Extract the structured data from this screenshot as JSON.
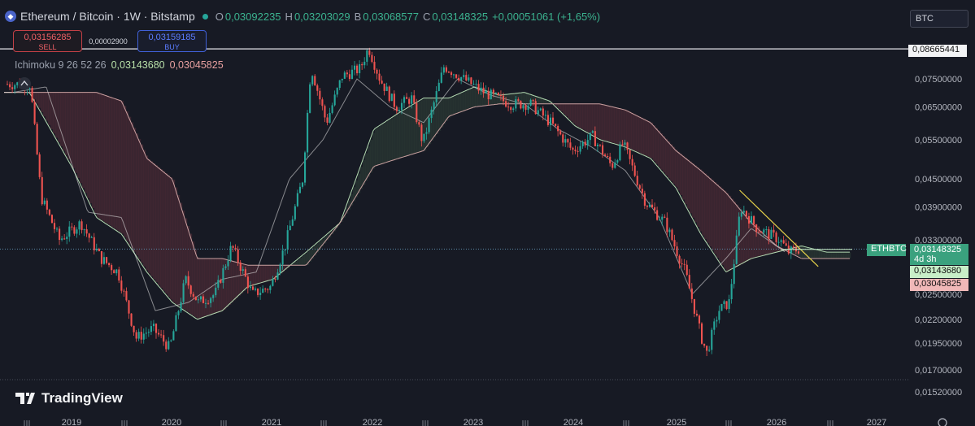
{
  "header": {
    "title": "Ethereum / Bitcoin · 1W · Bitstamp",
    "o_label": "O",
    "o_value": "0,03092235",
    "h_label": "H",
    "h_value": "0,03203029",
    "l_label": "B",
    "l_value": "0,03068577",
    "c_label": "C",
    "c_value": "0,03148325",
    "change": "+0,00051061 (+1,65%)"
  },
  "trade": {
    "sell_price": "0,03156285",
    "sell_label": "SELL",
    "spread": "0,00002900",
    "buy_price": "0,03159185",
    "buy_label": "BUY"
  },
  "indicator": {
    "name": "Ichimoku 9 26 52 26",
    "value1": "0,03143680",
    "value2": "0,03045825"
  },
  "currency_label": "BTC",
  "logo_text": "TradingView",
  "price_labels": {
    "top_line": "0,08665441",
    "symbol_tag": "ETHBTC",
    "current": "0,03148325",
    "countdown": "4d 3h",
    "line1": "0,03143680",
    "line2": "0,03045825"
  },
  "colors": {
    "background": "#171a24",
    "up": "#26a69a",
    "down": "#ef5350",
    "cloud_bull": "#a5d6a7",
    "cloud_bear": "#c09090",
    "trendline": "#e6d24a"
  },
  "chart_data": {
    "type": "candlestick",
    "title": "Ethereum / Bitcoin · 1W · Bitstamp",
    "y_scale": "log",
    "ylim": [
      0.0148,
      0.09
    ],
    "y_ticks": [
      "0,07500000",
      "0,06500000",
      "0,05500000",
      "0,04500000",
      "0,03900000",
      "0,03300000",
      "0,02500000",
      "0,02200000",
      "0,01950000",
      "0,01700000",
      "0,01520000"
    ],
    "x_ticks": [
      "2019",
      "2020",
      "2021",
      "2022",
      "2023",
      "2024",
      "2025",
      "2026",
      "2027"
    ],
    "price_path": [
      {
        "t": "2018-08-01",
        "p": 0.073
      },
      {
        "t": "2018-09-10",
        "p": 0.041
      },
      {
        "t": "2018-11-15",
        "p": 0.033
      },
      {
        "t": "2019-02-01",
        "p": 0.036
      },
      {
        "t": "2019-04-15",
        "p": 0.03
      },
      {
        "t": "2019-06-15",
        "p": 0.028
      },
      {
        "t": "2019-08-20",
        "p": 0.02
      },
      {
        "t": "2019-10-20",
        "p": 0.021
      },
      {
        "t": "2019-12-20",
        "p": 0.019
      },
      {
        "t": "2020-02-15",
        "p": 0.027
      },
      {
        "t": "2020-04-01",
        "p": 0.024
      },
      {
        "t": "2020-06-01",
        "p": 0.025
      },
      {
        "t": "2020-08-01",
        "p": 0.032
      },
      {
        "t": "2020-10-15",
        "p": 0.025
      },
      {
        "t": "2020-12-20",
        "p": 0.026
      },
      {
        "t": "2021-02-10",
        "p": 0.032
      },
      {
        "t": "2021-04-15",
        "p": 0.045
      },
      {
        "t": "2021-05-15",
        "p": 0.08
      },
      {
        "t": "2021-07-10",
        "p": 0.06
      },
      {
        "t": "2021-09-05",
        "p": 0.076
      },
      {
        "t": "2021-11-10",
        "p": 0.079
      },
      {
        "t": "2021-12-10",
        "p": 0.088
      },
      {
        "t": "2022-01-20",
        "p": 0.075
      },
      {
        "t": "2022-03-20",
        "p": 0.065
      },
      {
        "t": "2022-05-15",
        "p": 0.068
      },
      {
        "t": "2022-06-25",
        "p": 0.054
      },
      {
        "t": "2022-09-10",
        "p": 0.08
      },
      {
        "t": "2022-11-20",
        "p": 0.075
      },
      {
        "t": "2023-02-01",
        "p": 0.07
      },
      {
        "t": "2023-05-10",
        "p": 0.066
      },
      {
        "t": "2023-07-20",
        "p": 0.066
      },
      {
        "t": "2023-10-01",
        "p": 0.06
      },
      {
        "t": "2023-12-20",
        "p": 0.052
      },
      {
        "t": "2024-03-01",
        "p": 0.056
      },
      {
        "t": "2024-05-10",
        "p": 0.048
      },
      {
        "t": "2024-06-20",
        "p": 0.054
      },
      {
        "t": "2024-09-10",
        "p": 0.04
      },
      {
        "t": "2024-11-20",
        "p": 0.036
      },
      {
        "t": "2025-02-01",
        "p": 0.028
      },
      {
        "t": "2025-04-01",
        "p": 0.02
      },
      {
        "t": "2025-04-20",
        "p": 0.0185
      },
      {
        "t": "2025-06-01",
        "p": 0.023
      },
      {
        "t": "2025-07-10",
        "p": 0.024
      },
      {
        "t": "2025-08-20",
        "p": 0.039
      },
      {
        "t": "2025-10-20",
        "p": 0.035
      },
      {
        "t": "2026-01-10",
        "p": 0.033
      },
      {
        "t": "2026-02-10",
        "p": 0.031
      },
      {
        "t": "2026-03-20",
        "p": 0.0315
      }
    ],
    "ichimoku_span_a": [
      {
        "t": "2018-08-01",
        "p": 0.07
      },
      {
        "t": "2019-01-01",
        "p": 0.048
      },
      {
        "t": "2019-04-01",
        "p": 0.037
      },
      {
        "t": "2019-07-01",
        "p": 0.034
      },
      {
        "t": "2019-10-01",
        "p": 0.028
      },
      {
        "t": "2020-01-01",
        "p": 0.024
      },
      {
        "t": "2020-04-01",
        "p": 0.022
      },
      {
        "t": "2020-07-01",
        "p": 0.023
      },
      {
        "t": "2020-10-01",
        "p": 0.026
      },
      {
        "t": "2021-01-01",
        "p": 0.027
      },
      {
        "t": "2021-05-01",
        "p": 0.031
      },
      {
        "t": "2021-09-01",
        "p": 0.036
      },
      {
        "t": "2022-01-01",
        "p": 0.058
      },
      {
        "t": "2022-04-01",
        "p": 0.063
      },
      {
        "t": "2022-07-01",
        "p": 0.068
      },
      {
        "t": "2022-10-01",
        "p": 0.068
      },
      {
        "t": "2023-01-01",
        "p": 0.072
      },
      {
        "t": "2023-04-01",
        "p": 0.069
      },
      {
        "t": "2023-07-01",
        "p": 0.07
      },
      {
        "t": "2023-10-01",
        "p": 0.067
      },
      {
        "t": "2024-01-01",
        "p": 0.059
      },
      {
        "t": "2024-04-01",
        "p": 0.055
      },
      {
        "t": "2024-07-01",
        "p": 0.053
      },
      {
        "t": "2024-10-01",
        "p": 0.05
      },
      {
        "t": "2025-01-01",
        "p": 0.043
      },
      {
        "t": "2025-04-01",
        "p": 0.034
      },
      {
        "t": "2025-07-01",
        "p": 0.028
      },
      {
        "t": "2025-10-01",
        "p": 0.03
      },
      {
        "t": "2026-01-01",
        "p": 0.031
      },
      {
        "t": "2026-04-01",
        "p": 0.032
      },
      {
        "t": "2026-07-01",
        "p": 0.031
      }
    ],
    "ichimoku_span_b": [
      {
        "t": "2018-08-01",
        "p": 0.07
      },
      {
        "t": "2019-01-01",
        "p": 0.07
      },
      {
        "t": "2019-04-01",
        "p": 0.07
      },
      {
        "t": "2019-07-01",
        "p": 0.067
      },
      {
        "t": "2019-10-01",
        "p": 0.05
      },
      {
        "t": "2020-01-01",
        "p": 0.045
      },
      {
        "t": "2020-04-01",
        "p": 0.03
      },
      {
        "t": "2020-07-01",
        "p": 0.03
      },
      {
        "t": "2020-10-01",
        "p": 0.029
      },
      {
        "t": "2021-01-01",
        "p": 0.029
      },
      {
        "t": "2021-05-01",
        "p": 0.029
      },
      {
        "t": "2021-09-01",
        "p": 0.036
      },
      {
        "t": "2022-01-01",
        "p": 0.048
      },
      {
        "t": "2022-04-01",
        "p": 0.05
      },
      {
        "t": "2022-07-01",
        "p": 0.052
      },
      {
        "t": "2022-10-01",
        "p": 0.062
      },
      {
        "t": "2023-01-01",
        "p": 0.065
      },
      {
        "t": "2023-04-01",
        "p": 0.066
      },
      {
        "t": "2023-07-01",
        "p": 0.066
      },
      {
        "t": "2023-10-01",
        "p": 0.066
      },
      {
        "t": "2024-01-01",
        "p": 0.066
      },
      {
        "t": "2024-04-01",
        "p": 0.066
      },
      {
        "t": "2024-07-01",
        "p": 0.064
      },
      {
        "t": "2024-10-01",
        "p": 0.06
      },
      {
        "t": "2025-01-01",
        "p": 0.052
      },
      {
        "t": "2025-04-01",
        "p": 0.047
      },
      {
        "t": "2025-07-01",
        "p": 0.042
      },
      {
        "t": "2025-10-01",
        "p": 0.036
      },
      {
        "t": "2026-01-01",
        "p": 0.032
      },
      {
        "t": "2026-04-01",
        "p": 0.03
      },
      {
        "t": "2026-07-01",
        "p": 0.03
      }
    ],
    "lagging_span": [
      {
        "t": "2018-06-01",
        "p": 0.07
      },
      {
        "t": "2018-10-01",
        "p": 0.072
      },
      {
        "t": "2019-03-01",
        "p": 0.038
      },
      {
        "t": "2019-07-01",
        "p": 0.037
      },
      {
        "t": "2019-11-01",
        "p": 0.023
      },
      {
        "t": "2020-03-01",
        "p": 0.024
      },
      {
        "t": "2020-07-01",
        "p": 0.027
      },
      {
        "t": "2020-11-01",
        "p": 0.028
      },
      {
        "t": "2021-03-01",
        "p": 0.045
      },
      {
        "t": "2021-07-01",
        "p": 0.055
      },
      {
        "t": "2021-11-01",
        "p": 0.075
      },
      {
        "t": "2022-03-01",
        "p": 0.065
      },
      {
        "t": "2022-07-01",
        "p": 0.06
      },
      {
        "t": "2022-11-01",
        "p": 0.075
      },
      {
        "t": "2023-03-01",
        "p": 0.069
      },
      {
        "t": "2023-07-01",
        "p": 0.066
      },
      {
        "t": "2023-11-01",
        "p": 0.058
      },
      {
        "t": "2024-03-01",
        "p": 0.053
      },
      {
        "t": "2024-07-01",
        "p": 0.047
      },
      {
        "t": "2024-11-01",
        "p": 0.037
      },
      {
        "t": "2025-03-01",
        "p": 0.025
      },
      {
        "t": "2025-07-01",
        "p": 0.03
      },
      {
        "t": "2025-10-01",
        "p": 0.035
      },
      {
        "t": "2026-02-01",
        "p": 0.031
      }
    ],
    "trendline": [
      {
        "t": "2025-08-20",
        "p": 0.0425
      },
      {
        "t": "2026-06-01",
        "p": 0.0288
      }
    ],
    "top_horizontal_line": 0.08665441,
    "current_price": 0.03148325,
    "grid": false
  }
}
